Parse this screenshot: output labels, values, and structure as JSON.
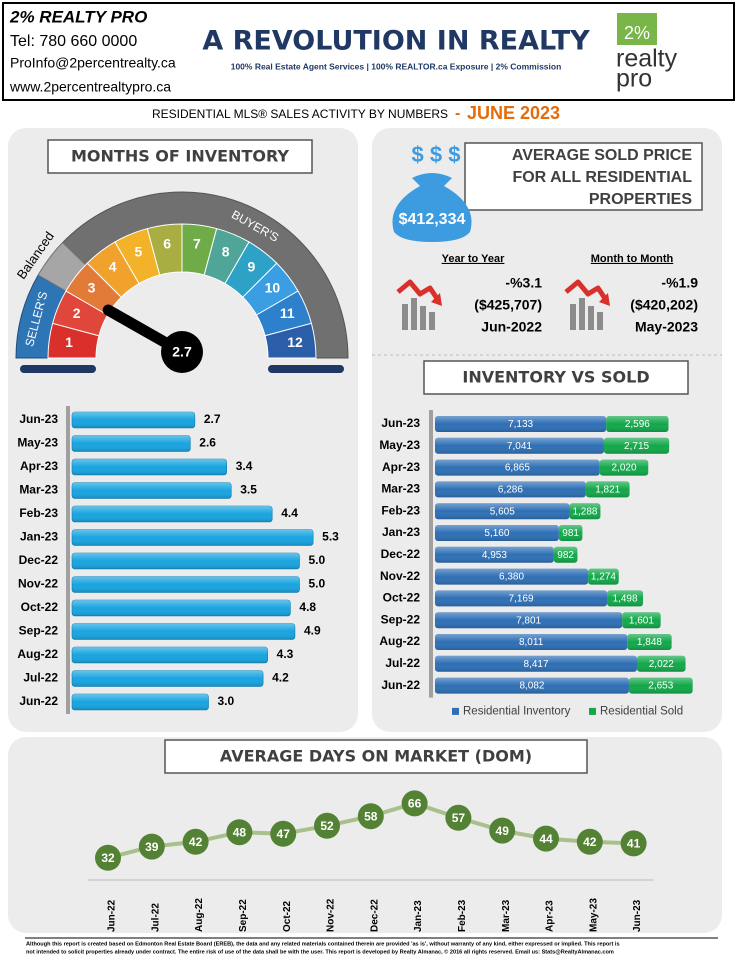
{
  "header": {
    "company": "2% REALTY PRO",
    "phone": "Tel: 780 660 0000",
    "email": "ProInfo@2percentrealty.ca",
    "website": "www.2percentrealtypro.ca",
    "headline": "A REVOLUTION IN REALTY",
    "tagline": "100% Real Estate Agent Services | 100% REALTOR.ca Exposure | 2% Commission",
    "logo": [
      "2%",
      "realty",
      "pro"
    ]
  },
  "subtitle": {
    "text": "RESIDENTIAL MLS® SALES ACTIVITY BY NUMBERS",
    "separator": "-",
    "period": "JUNE 2023"
  },
  "gauge": {
    "value": 2.7,
    "segments": [
      1,
      2,
      3,
      4,
      5,
      6,
      7,
      8,
      9,
      10,
      11,
      12
    ],
    "zones": [
      "SELLER'S",
      "Balanced",
      "BUYER'S"
    ]
  },
  "price": {
    "title_lines": [
      "AVERAGE  SOLD PRICE",
      "FOR ALL RESIDENTIAL",
      "PROPERTIES"
    ],
    "symbols": "$ $ $",
    "value": "$412,334",
    "year_to_year": {
      "label": "Year to Year",
      "change": "-%3.1",
      "previous": "($425,707)",
      "period": "Jun-2022"
    },
    "month_to_month": {
      "label": "Month to Month",
      "change": "-%1.9",
      "previous": "($420,202)",
      "period": "May-2023"
    }
  },
  "chart_data": [
    {
      "type": "bar",
      "title": "MONTHS OF INVENTORY",
      "categories": [
        "Jun-23",
        "May-23",
        "Apr-23",
        "Mar-23",
        "Feb-23",
        "Jan-23",
        "Dec-22",
        "Nov-22",
        "Oct-22",
        "Sep-22",
        "Aug-22",
        "Jul-22",
        "Jun-22"
      ],
      "values": [
        2.7,
        2.6,
        3.4,
        3.5,
        4.4,
        5.3,
        5.0,
        5.0,
        4.8,
        4.9,
        4.3,
        4.2,
        3.0
      ],
      "value_labels": [
        "2.7",
        "2.6",
        "3.4",
        "3.5",
        "4.4",
        "5.3",
        "5.0",
        "5.0",
        "4.8",
        "4.9",
        "4.3",
        "4.2",
        "3.0"
      ],
      "color": "#18a4e0"
    },
    {
      "type": "stacked-bar",
      "title": "INVENTORY VS SOLD",
      "categories": [
        "Jun-23",
        "May-23",
        "Apr-23",
        "Mar-23",
        "Feb-23",
        "Jan-23",
        "Dec-22",
        "Nov-22",
        "Oct-22",
        "Sep-22",
        "Aug-22",
        "Jul-22",
        "Jun-22"
      ],
      "series": [
        {
          "name": "Residential Inventory",
          "color": "#2e6fb5",
          "values": [
            7133,
            7041,
            6865,
            6286,
            5605,
            5160,
            4953,
            6380,
            7169,
            7801,
            8011,
            8417,
            8082
          ],
          "value_labels": [
            "7,133",
            "7,041",
            "6,865",
            "6,286",
            "5,605",
            "5,160",
            "4,953",
            "6,380",
            "7,169",
            "7,801",
            "8,011",
            "8,417",
            "8,082"
          ]
        },
        {
          "name": "Residential Sold",
          "color": "#12a84a",
          "values": [
            2596,
            2715,
            2020,
            1821,
            1288,
            981,
            982,
            1274,
            1498,
            1601,
            1848,
            2022,
            2653
          ],
          "value_labels": [
            "2,596",
            "2,715",
            "2,020",
            "1,821",
            "1,288",
            "981",
            "982",
            "1,274",
            "1,498",
            "1,601",
            "1,848",
            "2,022",
            "2,653"
          ]
        }
      ],
      "legend": "bottom"
    },
    {
      "type": "line",
      "title": "AVERAGE DAYS ON MARKET (DOM)",
      "categories": [
        "Jun-22",
        "Jul-22",
        "Aug-22",
        "Sep-22",
        "Oct-22",
        "Nov-22",
        "Dec-22",
        "Jan-23",
        "Feb-23",
        "Mar-23",
        "Apr-23",
        "May-23",
        "Jun-23"
      ],
      "values": [
        32,
        39,
        42,
        48,
        47,
        52,
        58,
        66,
        57,
        49,
        44,
        42,
        41
      ],
      "color": "#548235",
      "line_color": "#a9c08a"
    }
  ],
  "footer": [
    "Although this report is created based on Edmonton Real Estate Board (EREB), the data and any related materials contained therein are provided 'as is', without warranty of any kind, either expressed or implied. This report is",
    "not intended to solicit properties already under contract. The entire risk of use of the data shall be with the user. This report is developed by Realty Almanac, © 2016 all rights reserved. Email us: Stats@RealtyAlmanac.com"
  ]
}
